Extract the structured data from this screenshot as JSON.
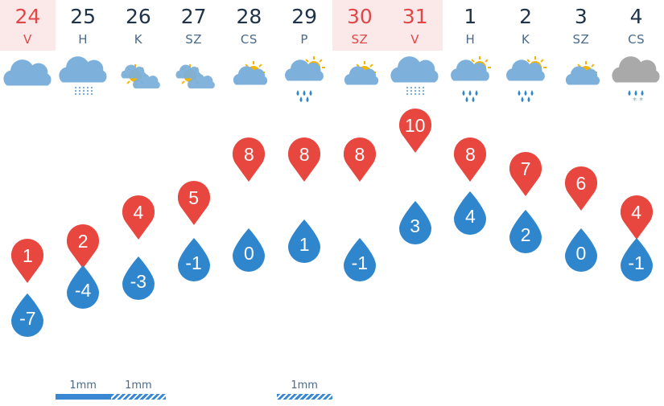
{
  "days": [
    {
      "num": "24",
      "name": "V",
      "weekend": true,
      "icon": "cloud",
      "max": "1",
      "min": "-7",
      "precip": "",
      "bar": ""
    },
    {
      "num": "25",
      "name": "H",
      "weekend": false,
      "icon": "cloud-drizzle",
      "max": "2",
      "min": "-4",
      "precip": "1mm",
      "bar": "solid"
    },
    {
      "num": "26",
      "name": "K",
      "weekend": false,
      "icon": "partly-cloudy",
      "max": "4",
      "min": "-3",
      "precip": "1mm",
      "bar": "hatched"
    },
    {
      "num": "27",
      "name": "SZ",
      "weekend": false,
      "icon": "partly-cloudy",
      "max": "5",
      "min": "-1",
      "precip": "",
      "bar": ""
    },
    {
      "num": "28",
      "name": "CS",
      "weekend": false,
      "icon": "sun-cloud",
      "max": "8",
      "min": "0",
      "precip": "",
      "bar": ""
    },
    {
      "num": "29",
      "name": "P",
      "weekend": false,
      "icon": "sun-cloud-rain",
      "max": "8",
      "min": "1",
      "precip": "1mm",
      "bar": "hatched"
    },
    {
      "num": "30",
      "name": "SZ",
      "weekend": true,
      "icon": "sun-cloud",
      "max": "8",
      "min": "-1",
      "precip": "",
      "bar": ""
    },
    {
      "num": "31",
      "name": "V",
      "weekend": true,
      "icon": "cloud-drizzle",
      "max": "10",
      "min": "3",
      "precip": "",
      "bar": ""
    },
    {
      "num": "1",
      "name": "H",
      "weekend": false,
      "icon": "sun-cloud-rain",
      "max": "8",
      "min": "4",
      "precip": "",
      "bar": ""
    },
    {
      "num": "2",
      "name": "K",
      "weekend": false,
      "icon": "sun-cloud-rain",
      "max": "7",
      "min": "2",
      "precip": "",
      "bar": ""
    },
    {
      "num": "3",
      "name": "SZ",
      "weekend": false,
      "icon": "sun-cloud",
      "max": "6",
      "min": "0",
      "precip": "",
      "bar": ""
    },
    {
      "num": "4",
      "name": "CS",
      "weekend": false,
      "icon": "cloud-sleet",
      "max": "4",
      "min": "-1",
      "precip": "",
      "bar": ""
    }
  ],
  "colors": {
    "max": "#e8473f",
    "min": "#2f86cc",
    "weekend": "#e04848",
    "sun": "#f5b400",
    "cloud": "#7db0db",
    "cloud_grey": "#a9a9a9"
  }
}
